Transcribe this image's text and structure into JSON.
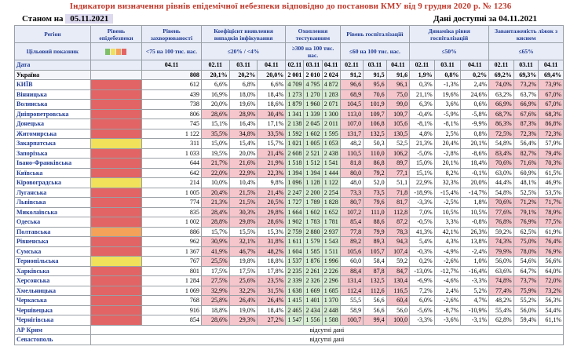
{
  "title": "Індикатори визначення рівнів епідемічної небезпеки відповідно до постанови КМУ від 9 грудня 2020 р. № 1236",
  "status_label": "Станом на",
  "status_date": "05.11.2021",
  "available_label": "Дані доступні за 04.11.2021",
  "headers": {
    "region": "Регіон",
    "level": "Рівень епідебезпеки",
    "incidence": "Рівень захворюваності",
    "detection": "Коефіцієнт виявлення випадків інфікування",
    "testing": "Охоплення тестуванням",
    "hosp": "Рівень госпіталізацій",
    "dyn": "Динаміка рівня госпіталізацій",
    "oxygen": "Завантаженість ліжок з киснем"
  },
  "target_label": "Цільовий показник",
  "targets": {
    "incidence": "<75 на 100 тис. нас.",
    "detection": "≤20% / <4%",
    "testing": "≥300 на 100 тис. нас.",
    "hosp": "≤60 на 100 тис. нас.",
    "dyn": "≤50%",
    "oxygen": "≤65%"
  },
  "date_label": "Дата",
  "dates": {
    "incidence": "04.11",
    "triple": [
      "02.11",
      "03.11",
      "04.11"
    ]
  },
  "na_text": "відсутні дані",
  "colors": {
    "red": "#e26464",
    "orange": "#f4a259",
    "yellow": "#f1e05a",
    "green": "#7fbf6a"
  },
  "rows": [
    {
      "name": "Україна",
      "level": "",
      "inc": "808",
      "det": [
        "20,1%",
        "20,2%",
        "20,0%"
      ],
      "test": [
        "2 001",
        "2 010",
        "2 024"
      ],
      "hosp": [
        "91,2",
        "91,5",
        "91,6"
      ],
      "dyn": [
        "1,9%",
        "0,8%",
        "0,2%"
      ],
      "oxy": [
        "69,2%",
        "69,3%",
        "69,4%"
      ]
    },
    {
      "name": "КИЇВ",
      "level": "red",
      "inc": "612",
      "det": [
        "6,6%",
        "6,8%",
        "6,6%"
      ],
      "test": [
        "4 709",
        "4 795",
        "4 872"
      ],
      "hosp": [
        "96,6",
        "95,6",
        "96,1"
      ],
      "dyn": [
        "0,3%",
        "-1,3%",
        "2,4%"
      ],
      "oxy": [
        "74,0%",
        "73,2%",
        "73,9%"
      ]
    },
    {
      "name": "Вінницька",
      "level": "red",
      "inc": "439",
      "det": [
        "16,9%",
        "18,0%",
        "18,4%"
      ],
      "test": [
        "1 273",
        "1 270",
        "1 283"
      ],
      "hosp": [
        "68,9",
        "70,6",
        "75,0"
      ],
      "dyn": [
        "21,1%",
        "19,6%",
        "24,6%"
      ],
      "oxy": [
        "63,2%",
        "63,7%",
        "67,0%"
      ]
    },
    {
      "name": "Волинська",
      "level": "red",
      "inc": "738",
      "det": [
        "20,0%",
        "19,6%",
        "18,6%"
      ],
      "test": [
        "1 879",
        "1 960",
        "2 071"
      ],
      "hosp": [
        "104,5",
        "101,9",
        "99,0"
      ],
      "dyn": [
        "6,3%",
        "3,6%",
        "0,6%"
      ],
      "oxy": [
        "66,9%",
        "66,9%",
        "67,0%"
      ]
    },
    {
      "name": "Дніпропетровська",
      "level": "red",
      "inc": "806",
      "det": [
        "28,6%",
        "28,9%",
        "30,4%"
      ],
      "test": [
        "1 341",
        "1 339",
        "1 300"
      ],
      "hosp": [
        "113,0",
        "109,7",
        "109,7"
      ],
      "dyn": [
        "-0,4%",
        "-5,9%",
        "-5,8%"
      ],
      "oxy": [
        "68,7%",
        "67,6%",
        "68,3%"
      ]
    },
    {
      "name": "Донецька",
      "level": "red",
      "inc": "745",
      "det": [
        "15,1%",
        "16,4%",
        "17,1%"
      ],
      "test": [
        "2 138",
        "2 045",
        "2 011"
      ],
      "hosp": [
        "107,0",
        "106,8",
        "105,6"
      ],
      "dyn": [
        "-8,1%",
        "-8,1%",
        "-9,9%"
      ],
      "oxy": [
        "86,3%",
        "87,3%",
        "86,8%"
      ]
    },
    {
      "name": "Житомирська",
      "level": "red",
      "inc": "1 122",
      "det": [
        "35,5%",
        "34,8%",
        "33,5%"
      ],
      "test": [
        "1 592",
        "1 602",
        "1 595"
      ],
      "hosp": [
        "131,7",
        "132,5",
        "130,5"
      ],
      "dyn": [
        "4,8%",
        "2,5%",
        "0,8%"
      ],
      "oxy": [
        "72,5%",
        "72,3%",
        "72,3%"
      ]
    },
    {
      "name": "Закарпатська",
      "level": "yellow",
      "inc": "311",
      "det": [
        "15,0%",
        "15,4%",
        "15,7%"
      ],
      "test": [
        "1 021",
        "1 005",
        "1 053"
      ],
      "hosp": [
        "48,2",
        "50,3",
        "52,5"
      ],
      "dyn": [
        "21,3%",
        "20,4%",
        "20,1%"
      ],
      "oxy": [
        "54,8%",
        "56,4%",
        "57,9%"
      ]
    },
    {
      "name": "Запорізька",
      "level": "red",
      "inc": "1 033",
      "det": [
        "19,5%",
        "20,0%",
        "21,4%"
      ],
      "test": [
        "2 608",
        "2 521",
        "2 438"
      ],
      "hosp": [
        "110,5",
        "110,0",
        "106,2"
      ],
      "dyn": [
        "-5,0%",
        "-2,8%",
        "-8,6%"
      ],
      "oxy": [
        "83,4%",
        "82,7%",
        "79,4%"
      ]
    },
    {
      "name": "Івано-Франківська",
      "level": "red",
      "inc": "644",
      "det": [
        "21,7%",
        "21,6%",
        "21,9%"
      ],
      "test": [
        "1 518",
        "1 512",
        "1 541"
      ],
      "hosp": [
        "81,8",
        "86,8",
        "89,7"
      ],
      "dyn": [
        "15,0%",
        "20,1%",
        "18,4%"
      ],
      "oxy": [
        "70,6%",
        "71,6%",
        "70,3%"
      ]
    },
    {
      "name": "Київська",
      "level": "red",
      "inc": "642",
      "det": [
        "22,0%",
        "22,9%",
        "22,3%"
      ],
      "test": [
        "1 394",
        "1 394",
        "1 444"
      ],
      "hosp": [
        "80,0",
        "79,2",
        "77,1"
      ],
      "dyn": [
        "15,1%",
        "8,2%",
        "-0,1%"
      ],
      "oxy": [
        "63,0%",
        "60,9%",
        "61,5%"
      ]
    },
    {
      "name": "Кіровоградська",
      "level": "yellow",
      "inc": "214",
      "det": [
        "10,0%",
        "10,4%",
        "9,8%"
      ],
      "test": [
        "1 096",
        "1 128",
        "1 122"
      ],
      "hosp": [
        "48,0",
        "52,0",
        "51,1"
      ],
      "dyn": [
        "22,9%",
        "32,3%",
        "20,0%"
      ],
      "oxy": [
        "44,4%",
        "48,1%",
        "46,9%"
      ]
    },
    {
      "name": "Луганська",
      "level": "red",
      "inc": "1 005",
      "det": [
        "20,4%",
        "21,5%",
        "21,4%"
      ],
      "test": [
        "2 247",
        "2 200",
        "2 254"
      ],
      "hosp": [
        "73,3",
        "73,5",
        "71,8"
      ],
      "dyn": [
        "-18,9%",
        "-15,4%",
        "-14,7%"
      ],
      "oxy": [
        "54,8%",
        "52,5%",
        "53,5%"
      ]
    },
    {
      "name": "Львівська",
      "level": "red",
      "inc": "774",
      "det": [
        "21,3%",
        "21,5%",
        "20,5%"
      ],
      "test": [
        "1 727",
        "1 789",
        "1 828"
      ],
      "hosp": [
        "80,7",
        "79,6",
        "81,7"
      ],
      "dyn": [
        "-3,3%",
        "-2,5%",
        "1,8%"
      ],
      "oxy": [
        "70,6%",
        "71,2%",
        "71,7%"
      ]
    },
    {
      "name": "Миколаївська",
      "level": "red",
      "inc": "835",
      "det": [
        "28,4%",
        "30,3%",
        "29,8%"
      ],
      "test": [
        "1 664",
        "1 602",
        "1 652"
      ],
      "hosp": [
        "107,2",
        "111,0",
        "112,8"
      ],
      "dyn": [
        "7,0%",
        "10,5%",
        "10,5%"
      ],
      "oxy": [
        "77,6%",
        "79,1%",
        "78,9%"
      ]
    },
    {
      "name": "Одеська",
      "level": "red",
      "inc": "1 002",
      "det": [
        "28,8%",
        "29,8%",
        "28,6%"
      ],
      "test": [
        "1 902",
        "1 783",
        "1 781"
      ],
      "hosp": [
        "85,4",
        "88,6",
        "87,2"
      ],
      "dyn": [
        "-0,5%",
        "3,3%",
        "-0,8%"
      ],
      "oxy": [
        "76,8%",
        "76,9%",
        "77,5%"
      ]
    },
    {
      "name": "Полтавська",
      "level": "orange",
      "inc": "886",
      "det": [
        "15,7%",
        "15,5%",
        "15,3%"
      ],
      "test": [
        "2 759",
        "2 880",
        "2 937"
      ],
      "hosp": [
        "77,8",
        "79,9",
        "78,3"
      ],
      "dyn": [
        "41,3%",
        "42,1%",
        "26,3%"
      ],
      "oxy": [
        "59,2%",
        "62,5%",
        "61,9%"
      ]
    },
    {
      "name": "Рівненська",
      "level": "red",
      "inc": "962",
      "det": [
        "30,9%",
        "32,1%",
        "31,8%"
      ],
      "test": [
        "1 611",
        "1 579",
        "1 543"
      ],
      "hosp": [
        "89,2",
        "89,3",
        "94,3"
      ],
      "dyn": [
        "5,4%",
        "4,3%",
        "13,8%"
      ],
      "oxy": [
        "74,3%",
        "75,0%",
        "76,4%"
      ]
    },
    {
      "name": "Сумська",
      "level": "red",
      "inc": "1 367",
      "det": [
        "41,9%",
        "46,7%",
        "48,2%"
      ],
      "test": [
        "1 604",
        "1 585",
        "1 511"
      ],
      "hosp": [
        "105,6",
        "105,7",
        "107,4"
      ],
      "dyn": [
        "-0,3%",
        "-4,9%",
        "-2,4%"
      ],
      "oxy": [
        "79,9%",
        "78,0%",
        "76,9%"
      ]
    },
    {
      "name": "Тернопільська",
      "level": "yellow",
      "inc": "767",
      "det": [
        "25,5%",
        "19,8%",
        "18,8%"
      ],
      "test": [
        "1 537",
        "1 876",
        "1 996"
      ],
      "hosp": [
        "60,0",
        "58,4",
        "59,2"
      ],
      "dyn": [
        "0,2%",
        "-2,6%",
        "1,0%"
      ],
      "oxy": [
        "56,0%",
        "54,6%",
        "56,6%"
      ]
    },
    {
      "name": "Харківська",
      "level": "red",
      "inc": "801",
      "det": [
        "17,5%",
        "17,5%",
        "17,8%"
      ],
      "test": [
        "2 235",
        "2 261",
        "2 226"
      ],
      "hosp": [
        "88,4",
        "87,8",
        "84,7"
      ],
      "dyn": [
        "-13,0%",
        "-12,7%",
        "-16,4%"
      ],
      "oxy": [
        "63,6%",
        "64,7%",
        "64,0%"
      ]
    },
    {
      "name": "Херсонська",
      "level": "red",
      "inc": "1 284",
      "det": [
        "27,5%",
        "25,6%",
        "23,5%"
      ],
      "test": [
        "2 339",
        "2 326",
        "2 296"
      ],
      "hosp": [
        "131,4",
        "132,5",
        "130,4"
      ],
      "dyn": [
        "-6,9%",
        "-4,6%",
        "-3,3%"
      ],
      "oxy": [
        "74,8%",
        "73,7%",
        "72,0%"
      ]
    },
    {
      "name": "Хмельницька",
      "level": "red",
      "inc": "1 069",
      "det": [
        "32,9%",
        "32,2%",
        "31,5%"
      ],
      "test": [
        "1 638",
        "1 669",
        "1 685"
      ],
      "hosp": [
        "112,4",
        "112,6",
        "116,5"
      ],
      "dyn": [
        "7,2%",
        "2,4%",
        "5,2%"
      ],
      "oxy": [
        "77,4%",
        "75,9%",
        "73,2%"
      ]
    },
    {
      "name": "Черкаська",
      "level": "red",
      "inc": "768",
      "det": [
        "25,8%",
        "26,4%",
        "26,4%"
      ],
      "test": [
        "1 415",
        "1 401",
        "1 370"
      ],
      "hosp": [
        "55,5",
        "56,6",
        "60,4"
      ],
      "dyn": [
        "6,0%",
        "-2,6%",
        "4,7%"
      ],
      "oxy": [
        "48,2%",
        "55,2%",
        "56,3%"
      ]
    },
    {
      "name": "Чернівецька",
      "level": "red",
      "inc": "916",
      "det": [
        "18,8%",
        "19,0%",
        "18,4%"
      ],
      "test": [
        "2 465",
        "2 434",
        "2 448"
      ],
      "hosp": [
        "58,9",
        "56,6",
        "56,0"
      ],
      "dyn": [
        "-5,6%",
        "-8,7%",
        "-10,9%"
      ],
      "oxy": [
        "55,4%",
        "56,0%",
        "54,4%"
      ]
    },
    {
      "name": "Чернігівська",
      "level": "red",
      "inc": "854",
      "det": [
        "28,6%",
        "29,3%",
        "27,2%"
      ],
      "test": [
        "1 547",
        "1 556",
        "1 588"
      ],
      "hosp": [
        "100,7",
        "99,4",
        "100,0"
      ],
      "dyn": [
        "-3,3%",
        "-3,6%",
        "-3,1%"
      ],
      "oxy": [
        "62,8%",
        "59,4%",
        "61,1%"
      ]
    }
  ],
  "na_rows": [
    {
      "name": "АР Крим"
    },
    {
      "name": "Севастополь"
    }
  ]
}
